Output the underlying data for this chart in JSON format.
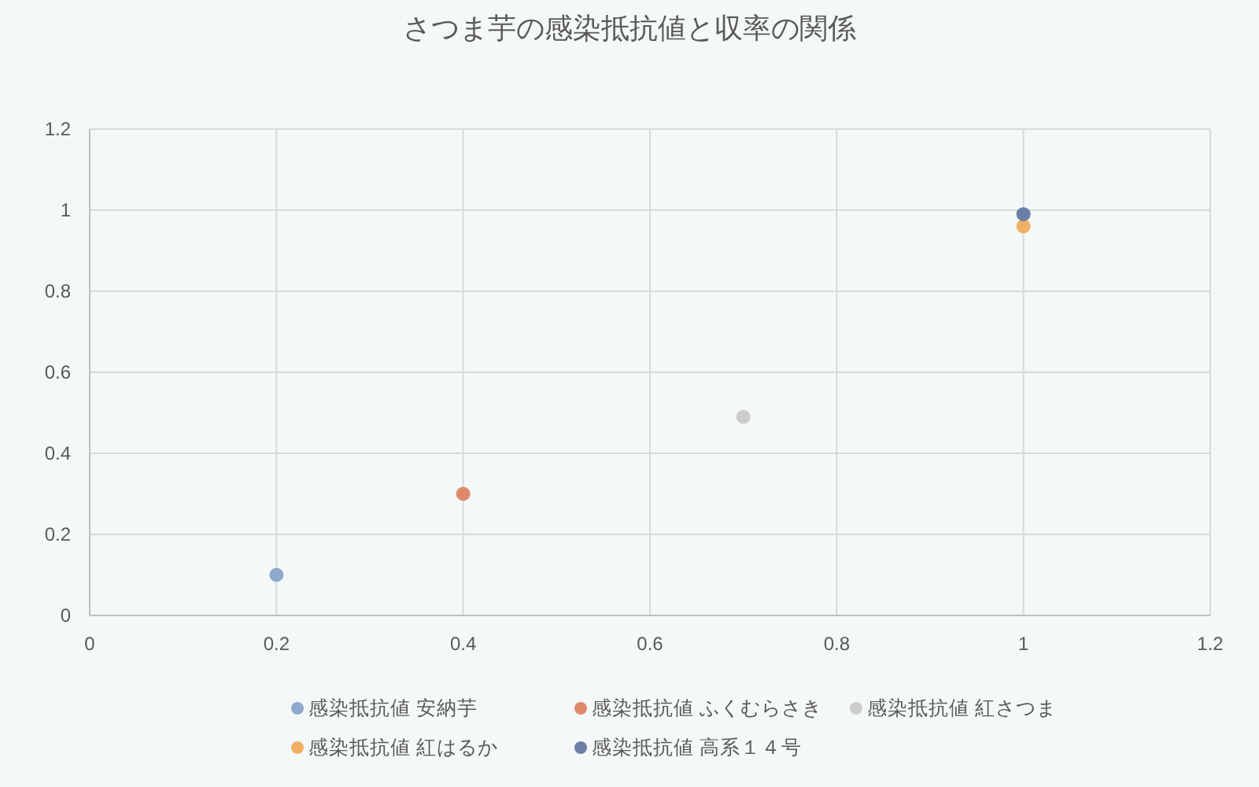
{
  "chart_data": {
    "type": "scatter",
    "title": "さつま芋の感染抵抗値と収率の関係",
    "series": [
      {
        "name": "感染抵抗値 安納芋",
        "color": "#8ea9cc",
        "x": [
          0.2
        ],
        "values": [
          0.1
        ]
      },
      {
        "name": "感染抵抗値 ふくむらさき",
        "color": "#e0896a",
        "x": [
          0.4
        ],
        "values": [
          0.3
        ]
      },
      {
        "name": "感染抵抗値 紅さつま",
        "color": "#cccccc",
        "x": [
          0.7
        ],
        "values": [
          0.49
        ]
      },
      {
        "name": "感染抵抗値 紅はるか",
        "color": "#efb064",
        "x": [
          1.0
        ],
        "values": [
          0.96
        ]
      },
      {
        "name": "感染抵抗値 高系１４号",
        "color": "#6b7fa6",
        "x": [
          1.0
        ],
        "values": [
          0.99
        ]
      }
    ],
    "xlim": [
      0,
      1.2
    ],
    "xticks": [
      0,
      0.2,
      0.4,
      0.6,
      0.8,
      1,
      1.2
    ],
    "ylim": [
      0,
      1.2
    ],
    "yticks": [
      0,
      0.2,
      0.4,
      0.6,
      0.8,
      1,
      1.2
    ],
    "grid": true,
    "legend": "bottom",
    "marker": "circle"
  }
}
